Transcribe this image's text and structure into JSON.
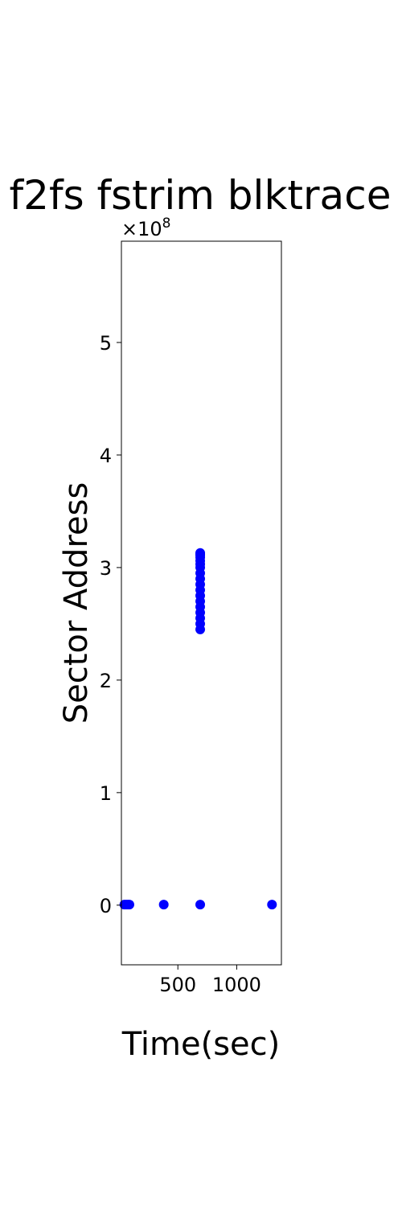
{
  "chart_data": {
    "type": "scatter",
    "title": "f2fs fstrim blktrace",
    "xlabel": "Time(sec)",
    "ylabel": "Sector Address",
    "xlim": [
      20,
      1380
    ],
    "ylim": [
      -53000000,
      590000000
    ],
    "xticks": [
      500,
      1000
    ],
    "xtick_labels": [
      "500",
      "1000"
    ],
    "yticks": [
      0,
      100000000,
      200000000,
      300000000,
      400000000,
      500000000
    ],
    "ytick_labels": [
      "0",
      "1",
      "2",
      "3",
      "4",
      "5"
    ],
    "y_offset_text": {
      "base": "×10",
      "exponent": "8"
    },
    "grid": false,
    "legend": "none",
    "marker_color": "#0000ff",
    "series": [
      {
        "x": [
          45,
          60,
          75,
          88,
          380,
          690,
          1300,
          690,
          690,
          690,
          690,
          690,
          690,
          690,
          690,
          690,
          690,
          690,
          690,
          690,
          690,
          690,
          690,
          690,
          690
        ],
        "y": [
          500000,
          500000,
          500000,
          500000,
          500000,
          500000,
          500000,
          245000000,
          250000000,
          255000000,
          260000000,
          265000000,
          270000000,
          275000000,
          280000000,
          285000000,
          290000000,
          295000000,
          300000000,
          303000000,
          306000000,
          309000000,
          311000000,
          312000000,
          313000000
        ]
      }
    ]
  }
}
